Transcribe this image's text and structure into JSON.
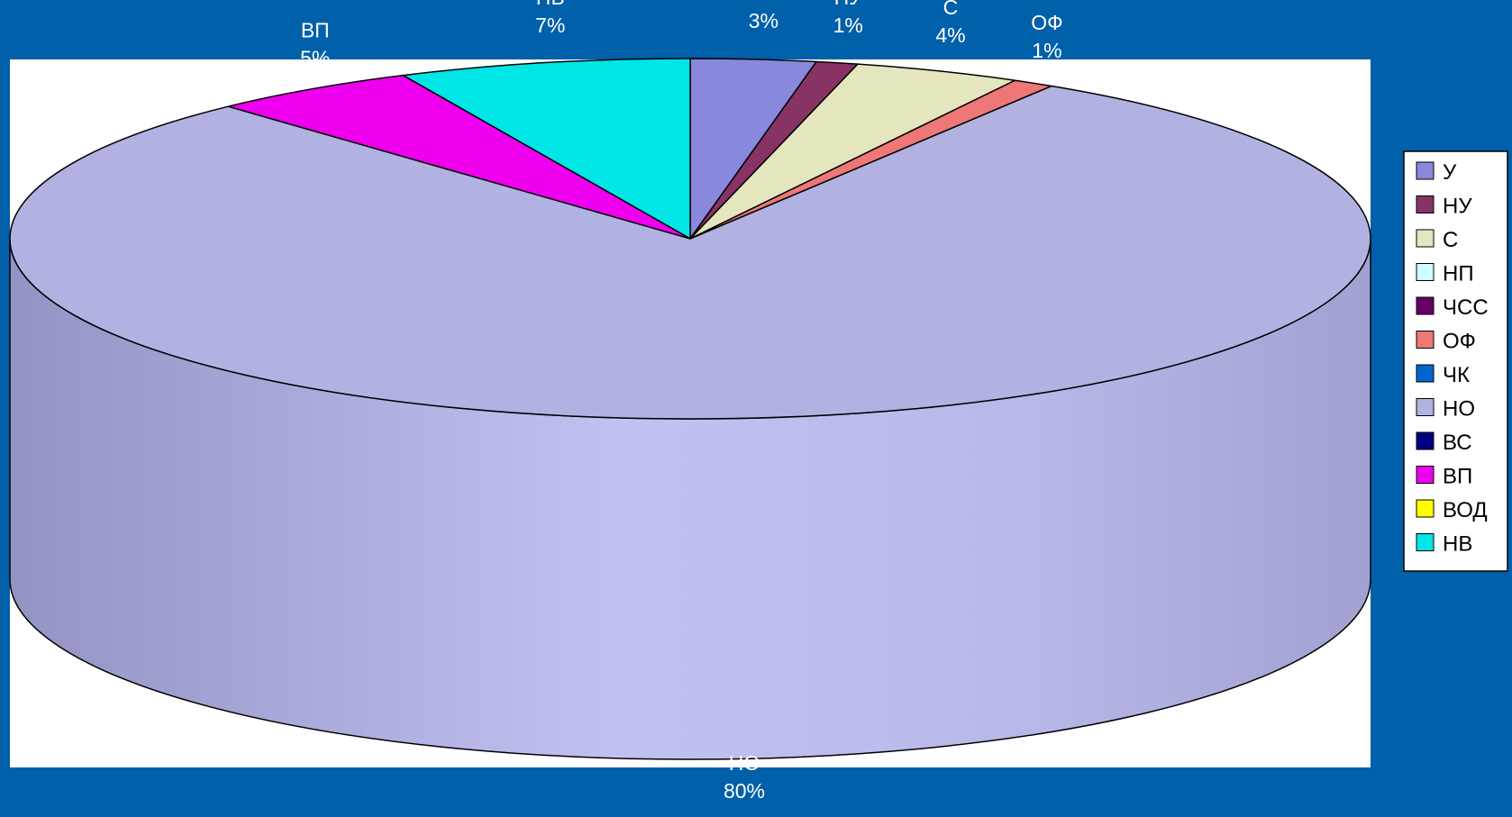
{
  "chart_data": {
    "type": "pie",
    "style": "3d",
    "categories": [
      "У",
      "НУ",
      "С",
      "НП",
      "ЧСС",
      "ОФ",
      "ЧК",
      "НО",
      "ВС",
      "ВП",
      "ВОД",
      "НВ"
    ],
    "values": [
      3,
      1,
      4,
      0,
      0,
      1,
      0,
      80,
      0,
      5,
      0,
      7
    ],
    "value_labels": [
      "3%",
      "1%",
      "4%",
      "",
      "",
      "1%",
      "",
      "80%",
      "",
      "5%",
      "",
      "7%"
    ],
    "colors": [
      "#8888dd",
      "#883366",
      "#e6e6be",
      "#ccffff",
      "#660066",
      "#ee7777",
      "#0066cc",
      "#b2b2e2",
      "#000080",
      "#ee00ee",
      "#ffff00",
      "#00e6e6"
    ],
    "legend_position": "right",
    "title": ""
  }
}
